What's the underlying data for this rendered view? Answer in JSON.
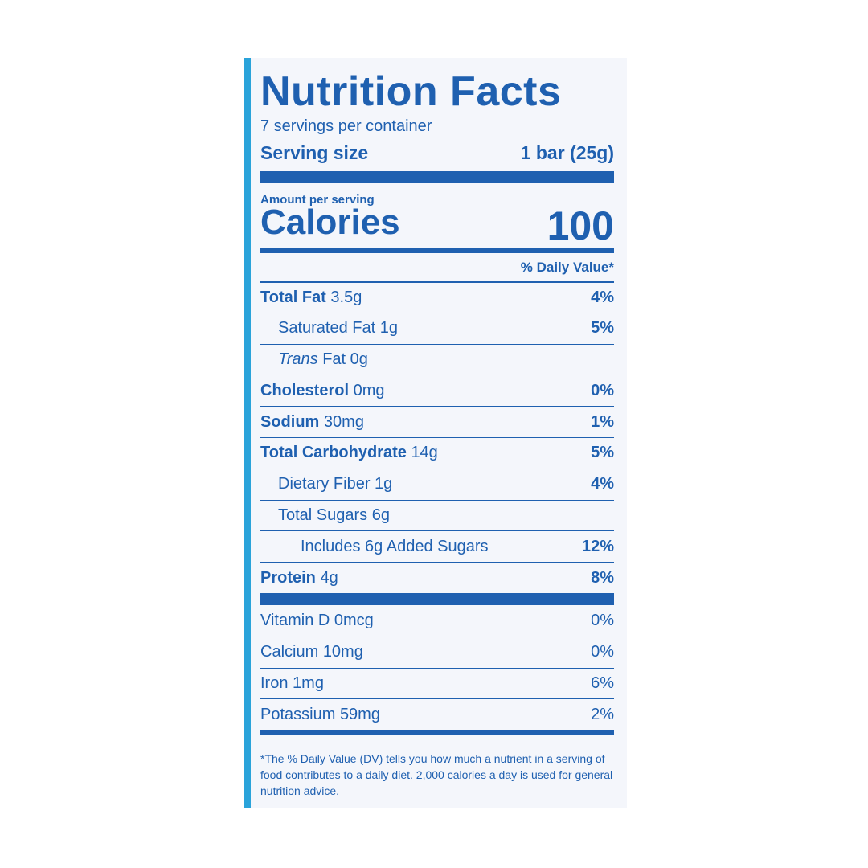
{
  "title": "Nutrition Facts",
  "servings": "7 servings per container",
  "serving_size": {
    "label": "Serving size",
    "value": "1 bar (25g)"
  },
  "amount_per_serving": "Amount per serving",
  "calories": {
    "label": "Calories",
    "value": "100"
  },
  "daily_value_header": "% Daily Value*",
  "nutrients": [
    {
      "name": "Total Fat",
      "amount": "3.5g",
      "dv": "4%"
    },
    {
      "name": "Saturated Fat",
      "amount": "1g",
      "dv": "5%"
    },
    {
      "prefix": "Trans",
      "name": "Fat",
      "amount": "0g"
    },
    {
      "name": "Cholesterol",
      "amount": "0mg",
      "dv": "0%"
    },
    {
      "name": "Sodium",
      "amount": "30mg",
      "dv": "1%"
    },
    {
      "name": "Total Carbohydrate",
      "amount": "14g",
      "dv": "5%"
    },
    {
      "name": "Dietary Fiber",
      "amount": "1g",
      "dv": "4%"
    },
    {
      "name": "Total Sugars",
      "amount": "6g"
    },
    {
      "name": "Includes 6g Added Sugars",
      "dv": "12%"
    },
    {
      "name": "Protein",
      "amount": "4g",
      "dv": "8%"
    }
  ],
  "vitamins": [
    {
      "name": "Vitamin D",
      "amount": "0mcg",
      "dv": "0%"
    },
    {
      "name": "Calcium",
      "amount": "10mg",
      "dv": "0%"
    },
    {
      "name": "Iron",
      "amount": "1mg",
      "dv": "6%"
    },
    {
      "name": "Potassium",
      "amount": "59mg",
      "dv": "2%"
    }
  ],
  "footnote": "*The % Daily Value (DV) tells you how much a nutrient in a serving of food contributes to a daily diet. 2,000 calories a day is used for general nutrition advice."
}
